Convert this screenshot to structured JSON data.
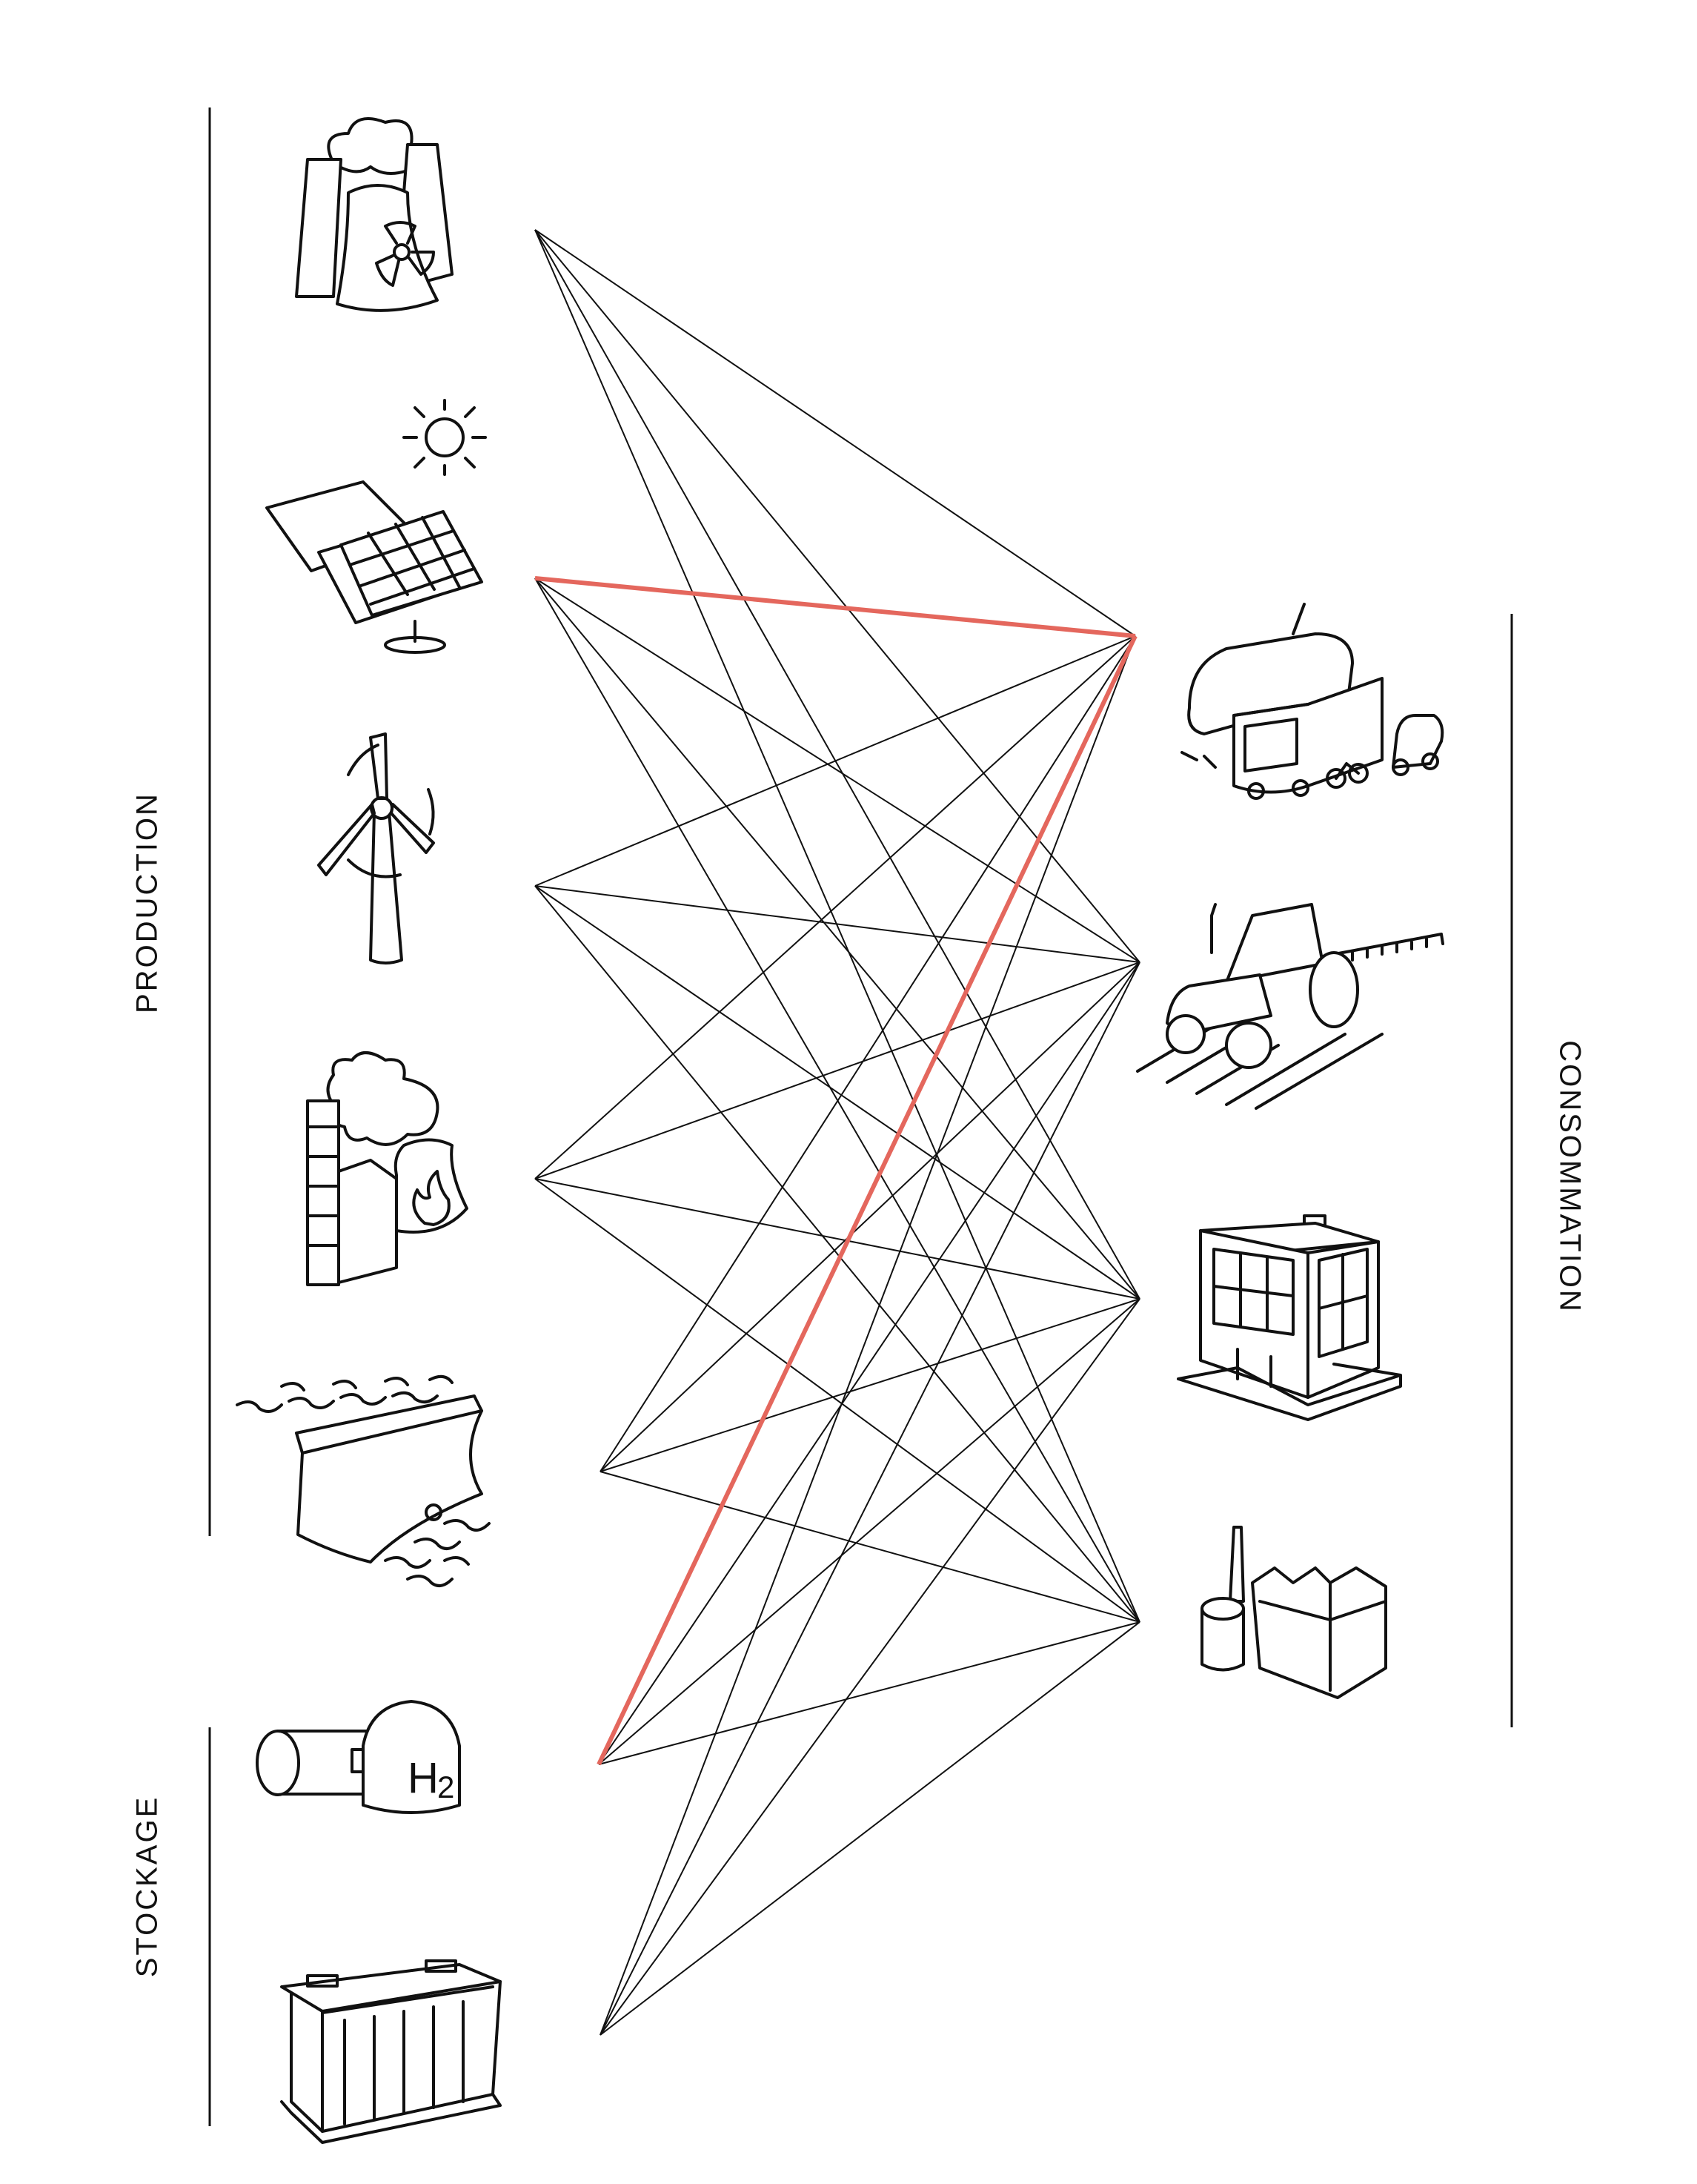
{
  "labels": {
    "production": "PRODUCTION",
    "stockage": "STOCKAGE",
    "consommation": "CONSOMMATION"
  },
  "sources": [
    {
      "id": "nuclear",
      "icon": "nuclear-plant-icon",
      "group": "production"
    },
    {
      "id": "solar",
      "icon": "solar-panel-icon",
      "group": "production"
    },
    {
      "id": "wind",
      "icon": "wind-turbine-icon",
      "group": "production"
    },
    {
      "id": "thermal",
      "icon": "thermal-plant-icon",
      "group": "production"
    },
    {
      "id": "hydro",
      "icon": "hydro-dam-icon",
      "group": "production"
    },
    {
      "id": "hydrogen",
      "icon": "hydrogen-tank-icon",
      "group": "stockage"
    },
    {
      "id": "battery",
      "icon": "battery-icon",
      "group": "stockage"
    }
  ],
  "consumers": [
    {
      "id": "transport",
      "icon": "transport-icon"
    },
    {
      "id": "agriculture",
      "icon": "tractor-icon"
    },
    {
      "id": "building",
      "icon": "building-icon"
    },
    {
      "id": "industry",
      "icon": "factory-icon"
    }
  ],
  "links": {
    "all_to_all": true,
    "highlighted": [
      {
        "from": "solar",
        "to": "transport"
      },
      {
        "from": "hydrogen",
        "to": "transport"
      }
    ]
  },
  "colors": {
    "line": "#111111",
    "highlight": "#e4675d",
    "background": "#ffffff"
  }
}
